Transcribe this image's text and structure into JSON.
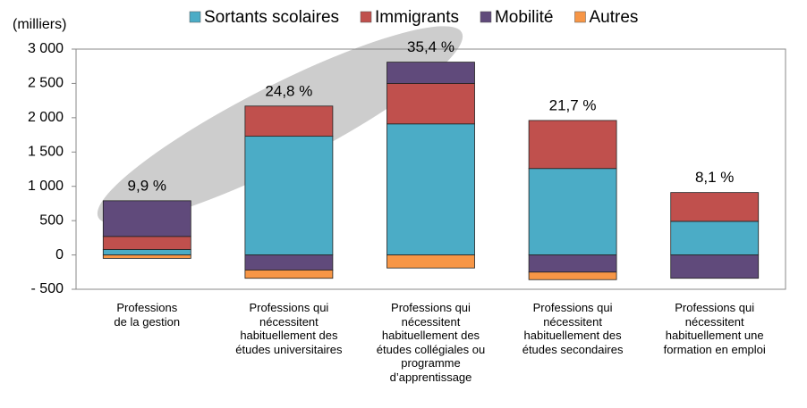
{
  "chart_data": {
    "type": "stacked-bar",
    "ylabel": "(milliers)",
    "categories": [
      "Professions\nde la gestion",
      "Professions qui\nnécessitent\nhabituellement  des\nétudes universitaires",
      "Professions qui\nnécessitent\nhabituellement des\nétudes collégiales ou\nprogramme\nd’apprentissage",
      "Professions qui\nnécessitent\nhabituellement des\nétudes secondaires",
      "Professions qui\nnécessitent\nhabituellement une\nformation en emploi"
    ],
    "series": [
      {
        "name": "Sortants scolaires",
        "color": "#4bacc6",
        "values": [
          80,
          1730,
          1910,
          1260,
          490
        ]
      },
      {
        "name": "Immigrants",
        "color": "#c0504d",
        "values": [
          190,
          440,
          590,
          700,
          420
        ]
      },
      {
        "name": "Mobilité",
        "color": "#604a7b",
        "values": [
          520,
          -220,
          310,
          -250,
          -340
        ]
      },
      {
        "name": "Autres",
        "color": "#f79646",
        "values": [
          -50,
          -120,
          -190,
          -110,
          0
        ]
      }
    ],
    "annotations": [
      "9,9 %",
      "24,8 %",
      "35,4 %",
      "21,7 %",
      "8,1 %"
    ],
    "ylim": [
      -500,
      3000
    ],
    "yticks": [
      {
        "value": -500,
        "label": "- 500"
      },
      0,
      500,
      {
        "value": 1000,
        "label": "1 000"
      },
      {
        "value": 1500,
        "label": "1 500"
      },
      {
        "value": 2000,
        "label": "2 000"
      },
      {
        "value": 2500,
        "label": "2 500"
      },
      {
        "value": 3000,
        "label": "3 000"
      }
    ],
    "legend": "top"
  }
}
